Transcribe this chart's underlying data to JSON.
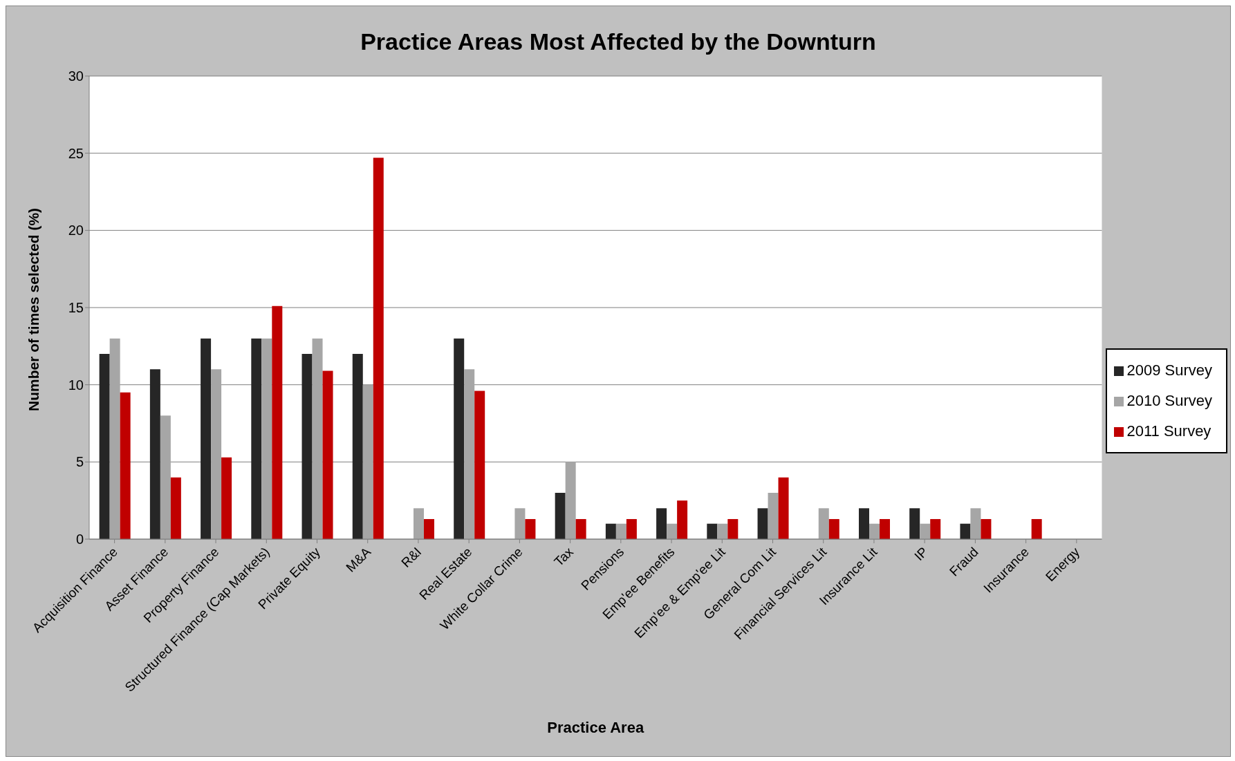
{
  "chart_data": {
    "type": "bar",
    "title": "Practice Areas Most Affected by the Downturn",
    "xlabel": "Practice Area",
    "ylabel": "Number of times selected (%)",
    "categories": [
      "Acquisition Finance",
      "Asset Finance",
      "Property Finance",
      "Structured Finance (Cap Markets)",
      "Private Equity",
      "M&A",
      "R&I",
      "Real Estate",
      "White Collar Crime",
      "Tax",
      "Pensions",
      "Emp'ee Benefits",
      "Emp'ee & Emp'ee Lit",
      "General Com Lit",
      "Financial Services Lit",
      "Insurance Lit",
      "IP",
      "Fraud",
      "Insurance",
      "Energy"
    ],
    "series": [
      {
        "name": "2009 Survey",
        "color": "#262626",
        "values": [
          12,
          11,
          13,
          13,
          12,
          12,
          null,
          13,
          null,
          3,
          1,
          2,
          1,
          2,
          null,
          2,
          2,
          1,
          null,
          null
        ]
      },
      {
        "name": "2010 Survey",
        "color": "#a6a6a6",
        "values": [
          13,
          8,
          11,
          13,
          13,
          10,
          2,
          11,
          2,
          5,
          1,
          1,
          1,
          3,
          2,
          1,
          1,
          2,
          null,
          null
        ]
      },
      {
        "name": "2011 Survey",
        "color": "#c00000",
        "values": [
          9.5,
          4.0,
          5.3,
          15.1,
          10.9,
          24.7,
          1.3,
          9.6,
          1.3,
          1.3,
          1.3,
          2.5,
          1.3,
          4.0,
          1.3,
          1.3,
          1.3,
          1.3,
          1.3,
          null
        ]
      }
    ],
    "ylim": [
      0,
      30
    ],
    "yticks": [
      0,
      5,
      10,
      15,
      20,
      25,
      30
    ],
    "grid": "y",
    "legend": "right"
  }
}
